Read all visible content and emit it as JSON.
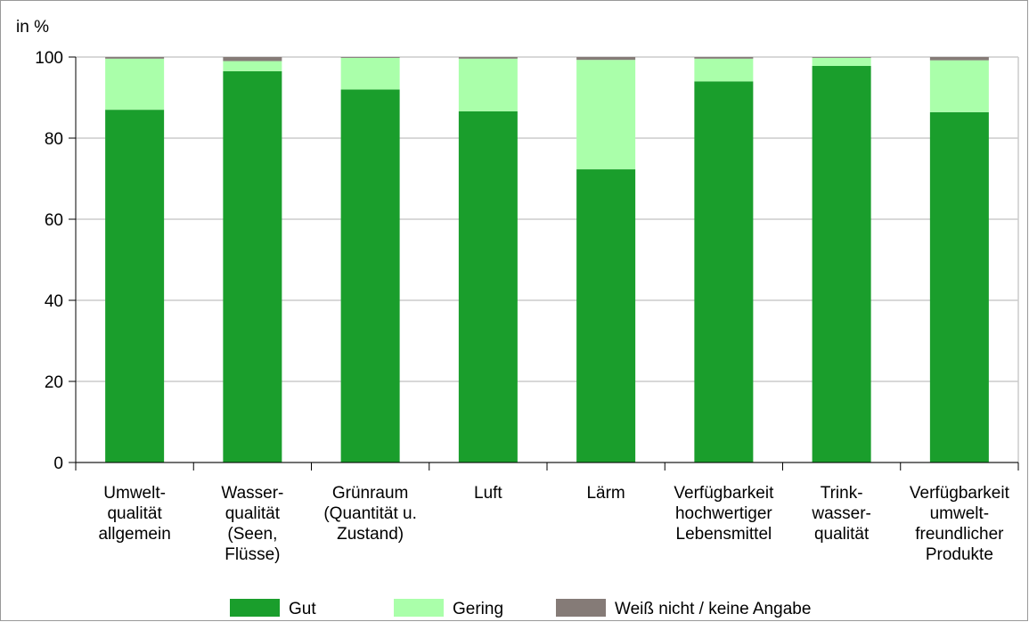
{
  "chart_data": {
    "type": "stacked-bar",
    "y_axis_label": "in %",
    "categories": [
      [
        "Umwelt-",
        "qualität",
        "allgemein"
      ],
      [
        "Wasser-",
        "qualität",
        "(Seen,",
        "Flüsse)"
      ],
      [
        "Grünraum",
        "(Quantität u.",
        "Zustand)"
      ],
      [
        "Luft"
      ],
      [
        "Lärm"
      ],
      [
        "Verfügbarkeit",
        "hochwertiger",
        "Lebensmittel"
      ],
      [
        "Trink-",
        "wasser-",
        "qualität"
      ],
      [
        "Verfügbarkeit",
        "umwelt-",
        "freundlicher",
        "Produkte"
      ]
    ],
    "series": [
      {
        "name": "Gut",
        "color": "#1a9e2c",
        "values": [
          87,
          96.5,
          92,
          86.6,
          72.3,
          94,
          97.8,
          86.4
        ]
      },
      {
        "name": "Gering",
        "color": "#aaffaa",
        "values": [
          12.6,
          2.5,
          7.8,
          13,
          27,
          5.6,
          2,
          12.8
        ]
      },
      {
        "name": "Weiß nicht / keine Angabe",
        "color": "#857b77",
        "values": [
          0.4,
          1,
          0.2,
          0.4,
          0.7,
          0.4,
          0.2,
          0.8
        ]
      }
    ],
    "ylim": [
      0,
      100
    ],
    "yticks": [
      0,
      20,
      40,
      60,
      80,
      100
    ],
    "grid": true,
    "legend": "bottom"
  }
}
